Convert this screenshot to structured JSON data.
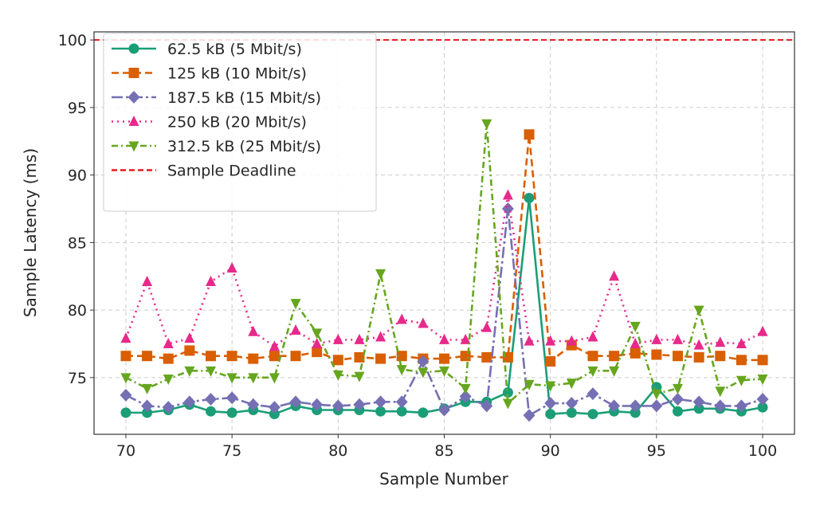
{
  "chart_data": {
    "type": "line",
    "xlabel": "Sample Number",
    "ylabel": "Sample Latency (ms)",
    "xlim": [
      68.5,
      101.5
    ],
    "ylim": [
      70.8,
      100.6
    ],
    "xticks": [
      70,
      75,
      80,
      85,
      90,
      95,
      100
    ],
    "yticks": [
      75,
      80,
      85,
      90,
      95,
      100
    ],
    "grid": true,
    "legend_position": "top-left",
    "x": [
      70,
      71,
      72,
      73,
      74,
      75,
      76,
      77,
      78,
      79,
      80,
      81,
      82,
      83,
      84,
      85,
      86,
      87,
      88,
      89,
      90,
      91,
      92,
      93,
      94,
      95,
      96,
      97,
      98,
      99,
      100
    ],
    "series": [
      {
        "name": "62.5 kB (5 Mbit/s)",
        "color": "#1b9e77",
        "marker": "circle",
        "dash": "",
        "values": [
          72.4,
          72.4,
          72.6,
          73.0,
          72.5,
          72.4,
          72.6,
          72.3,
          72.9,
          72.6,
          72.6,
          72.6,
          72.5,
          72.5,
          72.4,
          72.7,
          73.2,
          73.2,
          73.9,
          88.3,
          72.3,
          72.4,
          72.3,
          72.5,
          72.4,
          74.3,
          72.5,
          72.7,
          72.7,
          72.5,
          72.8
        ]
      },
      {
        "name": "125 kB (10 Mbit/s)",
        "color": "#d95f02",
        "marker": "square",
        "dash": "9,5",
        "values": [
          76.6,
          76.6,
          76.4,
          77.0,
          76.6,
          76.6,
          76.4,
          76.6,
          76.6,
          76.9,
          76.3,
          76.5,
          76.4,
          76.6,
          76.4,
          76.4,
          76.6,
          76.5,
          76.5,
          93.0,
          76.2,
          77.4,
          76.6,
          76.6,
          76.8,
          76.7,
          76.6,
          76.5,
          76.6,
          76.3,
          76.3
        ]
      },
      {
        "name": "187.5 kB (15 Mbit/s)",
        "color": "#7570b3",
        "marker": "diamond",
        "dash": "14,4,3,4",
        "values": [
          73.7,
          72.9,
          72.8,
          73.2,
          73.4,
          73.5,
          73.0,
          72.8,
          73.2,
          73.0,
          72.9,
          73.0,
          73.2,
          73.2,
          76.2,
          72.6,
          73.6,
          72.9,
          87.5,
          72.2,
          73.1,
          73.1,
          73.8,
          72.9,
          72.9,
          72.9,
          73.4,
          73.2,
          72.9,
          72.9,
          73.4
        ]
      },
      {
        "name": "250 kB (20 Mbit/s)",
        "color": "#e7298a",
        "marker": "triangle-up",
        "dash": "2,5",
        "values": [
          77.9,
          82.1,
          77.5,
          77.9,
          82.1,
          83.1,
          78.4,
          77.3,
          78.5,
          77.5,
          77.8,
          77.8,
          78.0,
          79.3,
          79.0,
          77.8,
          77.8,
          78.7,
          88.5,
          77.7,
          77.7,
          77.7,
          78.0,
          82.5,
          77.5,
          77.8,
          77.8,
          77.4,
          77.6,
          77.5,
          78.4
        ]
      },
      {
        "name": "312.5 kB (25 Mbit/s)",
        "color": "#66a61e",
        "marker": "triangle-down",
        "dash": "8,4,2,4",
        "values": [
          75.0,
          74.2,
          74.9,
          75.5,
          75.5,
          75.0,
          75.0,
          75.0,
          80.5,
          78.3,
          75.2,
          75.1,
          82.7,
          75.6,
          75.4,
          75.5,
          74.2,
          93.8,
          73.1,
          74.5,
          74.4,
          74.6,
          75.5,
          75.5,
          78.8,
          73.8,
          74.2,
          80.0,
          74.0,
          74.8,
          74.9
        ]
      }
    ],
    "deadline": {
      "name": "Sample Deadline",
      "value": 100,
      "color": "#e41a1c"
    }
  }
}
